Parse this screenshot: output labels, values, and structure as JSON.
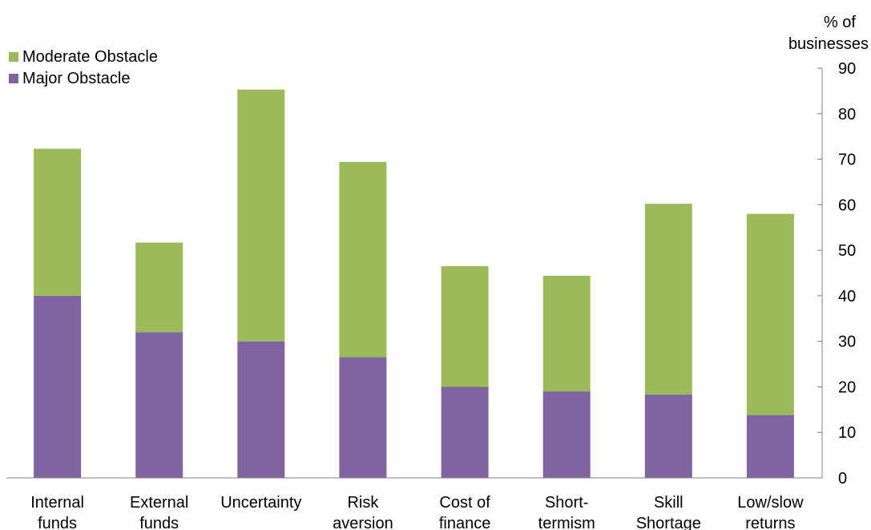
{
  "chart_data": {
    "type": "bar",
    "stacked": true,
    "categories": [
      [
        "Internal",
        "funds"
      ],
      [
        "External",
        "funds"
      ],
      [
        "Uncertainty"
      ],
      [
        "Risk",
        "aversion"
      ],
      [
        "Cost of",
        "finance"
      ],
      [
        "Short-",
        "termism"
      ],
      [
        "Skill",
        "Shortage"
      ],
      [
        "Low/slow",
        "returns"
      ]
    ],
    "series": [
      {
        "name": "Major Obstacle",
        "color": "#8064a2",
        "values": [
          40,
          32,
          30,
          26.5,
          20,
          19,
          18.3,
          13.8
        ]
      },
      {
        "name": "Moderate Obstacle",
        "color": "#9bbb59",
        "values": [
          32.3,
          19.7,
          55.3,
          42.9,
          26.5,
          25.4,
          41.9,
          44.2
        ]
      }
    ],
    "legend_order": [
      "Moderate Obstacle",
      "Major Obstacle"
    ],
    "legend_position": "top-left",
    "y_axis": {
      "position": "right",
      "unit_label": [
        "% of",
        "businesses"
      ],
      "min": 0,
      "max": 90,
      "ticks": [
        0,
        10,
        20,
        30,
        40,
        50,
        60,
        70,
        80,
        90
      ]
    },
    "grid": false
  }
}
